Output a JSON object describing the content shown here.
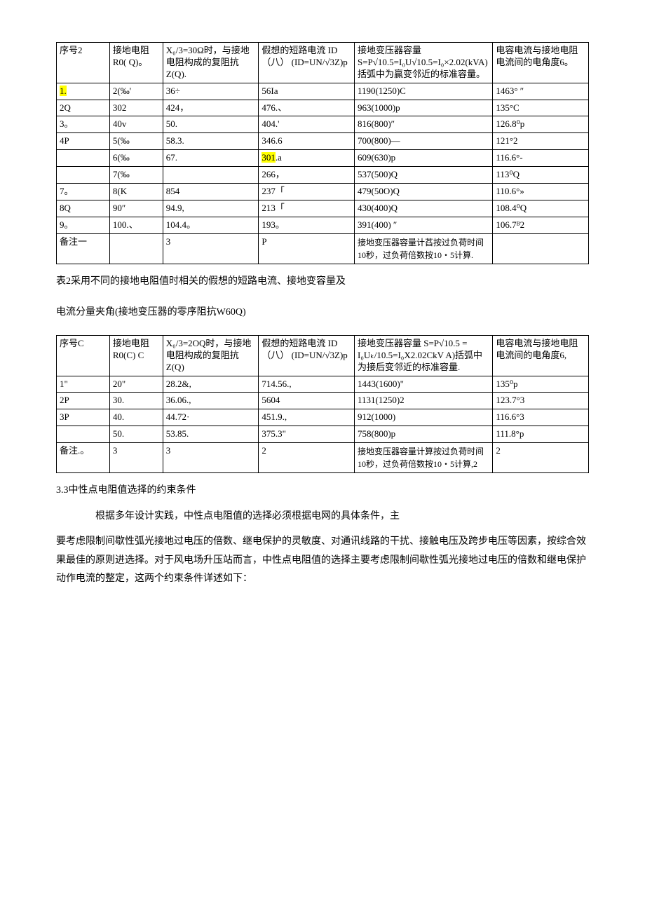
{
  "table1": {
    "headers": {
      "c1": "序号2",
      "c2": "接地电阻\nR0(\nQ)。",
      "c3": "X₀/3=30Ω时，与接地电阻构成的复阻抗Z(Q).",
      "c4": "假想的短路电流\nID（八）\n(ID=UN/√3Z)p",
      "c5": "接地变压器容量\nS=P√10.5=I₀U√10.5=I₀×2.02(kVA)括弧中为贏变邻近的标准容量。",
      "c6": "电容电流与接地电阻电流间的电角度6。"
    },
    "rows": [
      {
        "c1": "1.",
        "c1_hl": true,
        "c2": "2(‰'",
        "c3": "36÷",
        "c4": "56Ia",
        "c5": "1190(1250)C",
        "c6": "1463° ″"
      },
      {
        "c1": "2Q",
        "c2": "302",
        "c3": "424，",
        "c4": "476.、",
        "c5": "963(1000)p",
        "c6": "135°C"
      },
      {
        "c1": "3。",
        "c2": "40v",
        "c3": "50.",
        "c4": "404.'",
        "c5": "816(800)″",
        "c6": "126.8⁰p"
      },
      {
        "c1": "4P",
        "c2": "5(‰",
        "c3": "58.3.",
        "c4": "346.6",
        "c5": "700(800)—",
        "c6": "121°2"
      },
      {
        "c1": "",
        "c2": "6(‰",
        "c3": "67.",
        "c4": "301.a",
        "c4_hl": true,
        "c5": "609(630)p",
        "c6": "116.6°-"
      },
      {
        "c1": "",
        "c2": "7(‰",
        "c3": "",
        "c4": "266，",
        "c5": "537(500)Q",
        "c6": "113⁰Q"
      },
      {
        "c1": "7。",
        "c2": "8(K",
        "c3": "854",
        "c4": "237「",
        "c5": "479(50O)Q",
        "c6": "110.6°»"
      },
      {
        "c1": "8Q",
        "c2": "90″",
        "c3": "94.9,",
        "c4": "213「",
        "c5": "430(400)Q",
        "c6": "108.4⁰Q"
      },
      {
        "c1": "9。",
        "c2": "100.、",
        "c3": "104.4。",
        "c4": "193。",
        "c5": "391(400) ″",
        "c6": "106.7ᴮ2"
      },
      {
        "c1": "备注一",
        "c2": "",
        "c3": "3",
        "c4": "P",
        "c5": "接地变压器容量计萏按过负荷时间10秒，过负荷倍数按10・5计算.",
        "c6": ""
      }
    ]
  },
  "caption1a": "表2采用不同的接地电阻值时相关的假想的短路电流、接地变容量及",
  "caption1b": "电流分量夹角(接地变压器的零序阻抗W60Q)",
  "table2": {
    "headers": {
      "c1": "序号C",
      "c2": "接地电阻R0(C)\nC",
      "c3": "X₀/3=2OQ时，与接地电阻构成的复阻抗Z(Q)",
      "c4": "假想的短路电流\nID（八）\n(ID=UN/√3Z)p",
      "c5": "接地变压器容量\nS=P√10.5         =\nI₀Uₖ/10.5=I₀X2.02CkV\nA)括弧中为接后变邻近的标准容量.",
      "c6": "电容电流与接地电阻电流间的电角度6,"
    },
    "rows": [
      {
        "c1": "1\"",
        "c2": "20\"",
        "c3": "28.2&,",
        "c4": "714.56.,",
        "c5": "1443(1600)\"",
        "c6": "135⁰p"
      },
      {
        "c1": "2P",
        "c2": "30.",
        "c3": "36.06.,",
        "c4": "5604",
        "c5": "1131(1250)2",
        "c6": "123.7°3"
      },
      {
        "c1": "3P",
        "c2": "40.",
        "c3": "44.72·",
        "c4": "451.9.,",
        "c5": "912(1000)",
        "c6": "116.6°3"
      },
      {
        "c1": "",
        "c2": "50.",
        "c3": "53.85.",
        "c4": "375.3\"",
        "c5": "758(800)p",
        "c6": "111.8°p"
      },
      {
        "c1": "备注.。",
        "c2": "3",
        "c3": "3",
        "c4": "2",
        "c5": "接地变压器容量计算按过负荷时间10秒，过负荷倍数按10・5计算,2",
        "c6": "2"
      }
    ]
  },
  "section_title": "3.3中性点电阻值选择的约束条件",
  "para1": "根据多年设计实践，中性点电阻值的选择必须根据电网的具体条件，主",
  "para2": "要考虑限制间歇性弧光接地过电压的倍数、继电保护的灵敏度、对通讯线路的干扰、接触电压及跨步电压等因素，按综合效果最佳的原则进选择。对于风电场升压站而言，中性点电阻值的选择主要考虑限制间歇性弧光接地过电压的倍数和继电保护动作电流的整定，这两个约束条件详述如下：",
  "cols1": {
    "w1": "10%",
    "w2": "10%",
    "w3": "18%",
    "w4": "18%",
    "w5": "26%",
    "w6": "18%"
  },
  "cols2": {
    "w1": "10%",
    "w2": "10%",
    "w3": "18%",
    "w4": "18%",
    "w5": "26%",
    "w6": "18%"
  }
}
